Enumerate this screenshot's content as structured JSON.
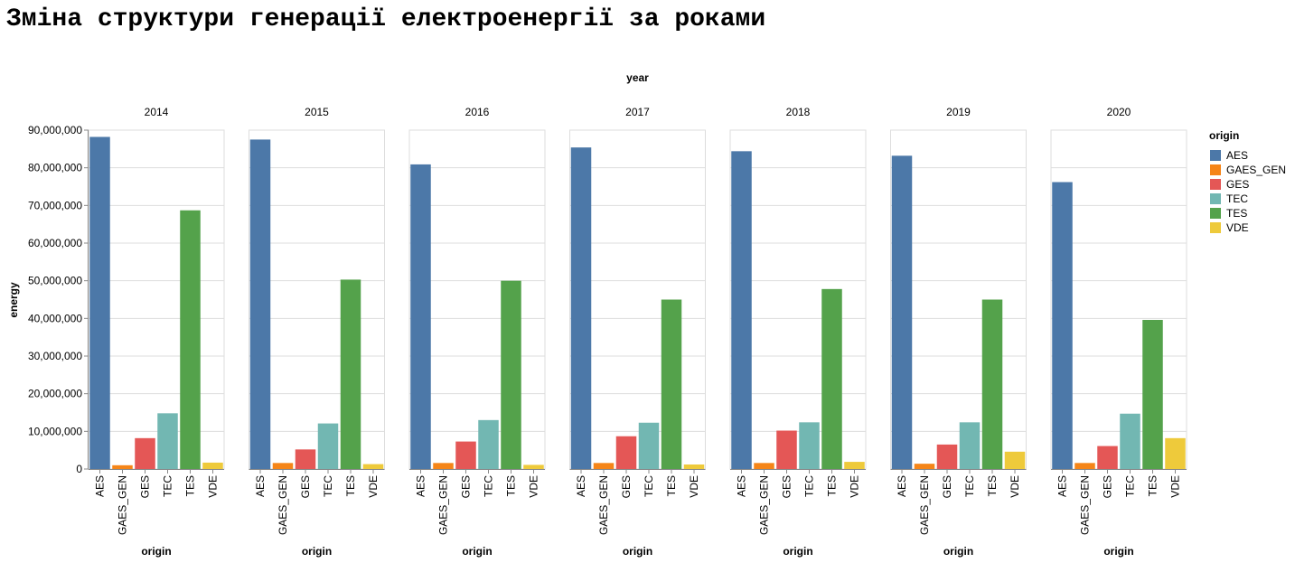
{
  "title": "Зміна структури генерації електроенергії за роками",
  "chart_data": {
    "type": "bar",
    "facet_header": "year",
    "facets": [
      "2014",
      "2015",
      "2016",
      "2017",
      "2018",
      "2019",
      "2020"
    ],
    "categories": [
      "AES",
      "GAES_GEN",
      "GES",
      "TEC",
      "TES",
      "VDE"
    ],
    "colors": [
      "#4c78a8",
      "#f58518",
      "#e45756",
      "#72b7b2",
      "#54a24b",
      "#eeca3b"
    ],
    "xlabel": "origin",
    "ylabel": "energy",
    "ylim": [
      0,
      90000000
    ],
    "yticks": [
      0,
      10000000,
      20000000,
      30000000,
      40000000,
      50000000,
      60000000,
      70000000,
      80000000,
      90000000
    ],
    "ytick_labels": [
      "0",
      "10,000,000",
      "20,000,000",
      "30,000,000",
      "40,000,000",
      "50,000,000",
      "60,000,000",
      "70,000,000",
      "80,000,000",
      "90,000,000"
    ],
    "grid": true,
    "legend": {
      "title": "origin",
      "placement": "right",
      "entries": [
        "AES",
        "GAES_GEN",
        "GES",
        "TEC",
        "TES",
        "VDE"
      ]
    },
    "values": [
      [
        88200000,
        1000000,
        8200000,
        14800000,
        68700000,
        1700000
      ],
      [
        87500000,
        1600000,
        5200000,
        12100000,
        50300000,
        1300000
      ],
      [
        80900000,
        1600000,
        7300000,
        13000000,
        50000000,
        1100000
      ],
      [
        85400000,
        1600000,
        8700000,
        12300000,
        45000000,
        1200000
      ],
      [
        84400000,
        1600000,
        10200000,
        12400000,
        47800000,
        1900000
      ],
      [
        83200000,
        1400000,
        6500000,
        12400000,
        45000000,
        4600000
      ],
      [
        76200000,
        1600000,
        6100000,
        14700000,
        39600000,
        8200000
      ]
    ]
  }
}
